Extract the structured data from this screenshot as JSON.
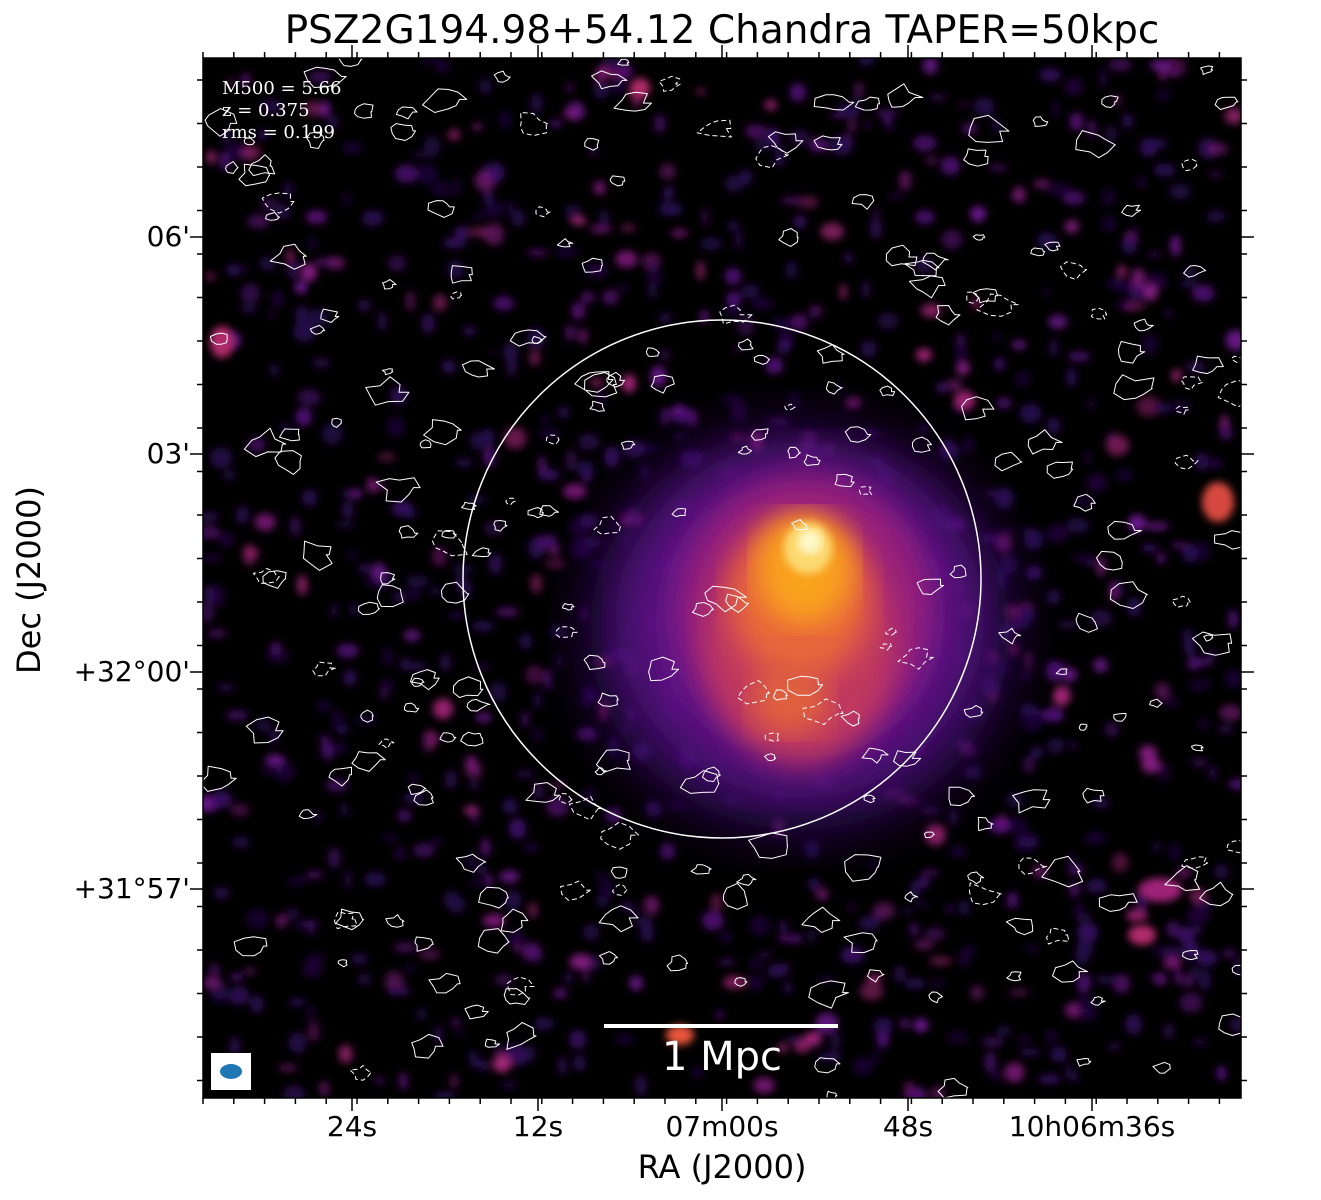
{
  "title": "PSZ2G194.98+54.12 Chandra TAPER=50kpc",
  "info": {
    "mass": "M500 = 5.66",
    "redshift": "z = 0.375",
    "rms": "rms = 0.199"
  },
  "axes": {
    "y_title": "Dec (J2000)",
    "x_title": "RA (J2000)",
    "y_ticks": [
      "06'",
      "03'",
      "+32°00'",
      "+31°57'"
    ],
    "x_ticks": [
      "24s",
      "12s",
      "07m00s",
      "48s",
      "10h06m36s"
    ]
  },
  "scale_bar": {
    "label": "1 Mpc"
  },
  "colors": {
    "background": "#000000",
    "contour": "#ffffff",
    "beam": "#1f77b4",
    "colormap": [
      "#000000",
      "#2a0a55",
      "#6b1590",
      "#b02a8a",
      "#e8553a",
      "#f9a21a",
      "#fcffa4"
    ]
  }
}
